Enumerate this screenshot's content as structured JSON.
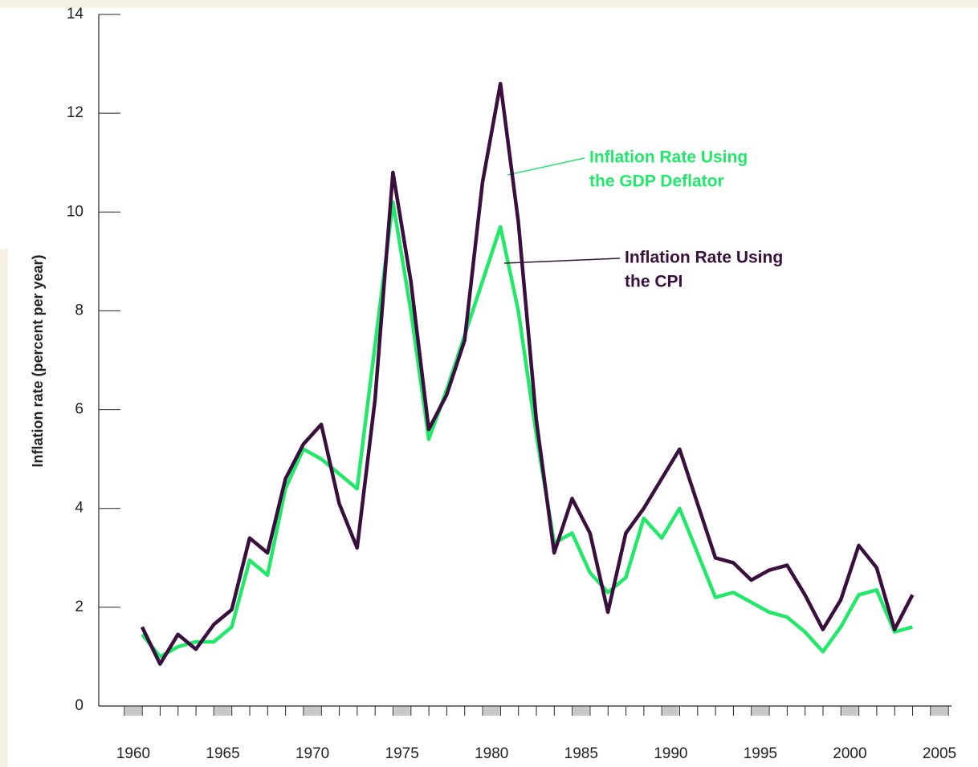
{
  "chart_data": {
    "type": "line",
    "y_label": "Inflation rate (percent per year)",
    "x": [
      1960,
      1961,
      1962,
      1963,
      1964,
      1965,
      1966,
      1967,
      1968,
      1969,
      1970,
      1971,
      1972,
      1973,
      1974,
      1975,
      1976,
      1977,
      1978,
      1979,
      1980,
      1981,
      1982,
      1983,
      1984,
      1985,
      1986,
      1987,
      1988,
      1989,
      1990,
      1991,
      1992,
      1993,
      1994,
      1995,
      1996,
      1997,
      1998,
      1999,
      2000,
      2001,
      2002,
      2003
    ],
    "series": [
      {
        "name": "Inflation Rate Using the GDP Deflator",
        "color": "#22e86a",
        "annotation": [
          "Inflation Rate Using",
          "the GDP Deflator"
        ],
        "values": [
          1.45,
          1.0,
          1.2,
          1.3,
          1.3,
          1.6,
          2.95,
          2.65,
          4.4,
          5.2,
          5.0,
          4.7,
          4.4,
          7.3,
          10.2,
          8.0,
          5.4,
          6.4,
          7.5,
          8.6,
          9.7,
          8.0,
          5.5,
          3.3,
          3.5,
          2.7,
          2.3,
          2.6,
          3.8,
          3.4,
          4.0,
          3.1,
          2.2,
          2.3,
          2.1,
          1.9,
          1.8,
          1.5,
          1.1,
          1.6,
          2.25,
          2.35,
          1.5,
          1.6
        ]
      },
      {
        "name": "Inflation Rate Using the CPI",
        "color": "#3a0f3e",
        "annotation": [
          "Inflation Rate Using",
          "the CPI"
        ],
        "values": [
          1.6,
          0.85,
          1.45,
          1.15,
          1.65,
          1.95,
          3.4,
          3.1,
          4.6,
          5.3,
          5.7,
          4.1,
          3.2,
          6.2,
          10.8,
          8.6,
          5.6,
          6.3,
          7.4,
          10.6,
          12.6,
          9.8,
          5.8,
          3.1,
          4.2,
          3.5,
          1.9,
          3.5,
          4.0,
          4.6,
          5.2,
          4.1,
          3.0,
          2.9,
          2.55,
          2.75,
          2.85,
          2.25,
          1.55,
          2.15,
          3.25,
          2.8,
          1.55,
          2.25
        ]
      }
    ],
    "xlim": [
      1960,
      2005
    ],
    "xticks": [
      1960,
      1965,
      1970,
      1975,
      1980,
      1985,
      1990,
      1995,
      2000,
      2005
    ],
    "ylim": [
      0,
      14
    ],
    "yticks": [
      0,
      2,
      4,
      6,
      8,
      10,
      12,
      14
    ]
  }
}
